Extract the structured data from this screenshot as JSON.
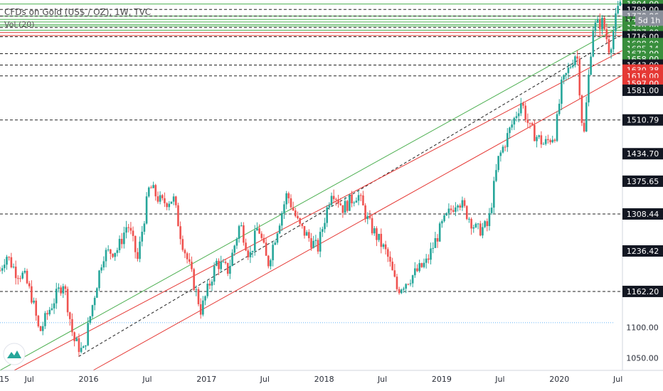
{
  "header": {
    "symbol_line": "CFDs on Gold (US$ / OZ), 1W, TVC",
    "volume_label": "Vol (20)"
  },
  "badges": {
    "countdown": "5d 1h",
    "partial_label": "17"
  },
  "colors": {
    "up": "#26a69a",
    "down": "#ef5350",
    "green_line": "#4caf50",
    "red_line": "#e53935",
    "dashed": "#222222",
    "dotted": "#64b5f6",
    "badge_dark": "#131722",
    "badge_red": "#e53935",
    "badge_green": "#388e3c",
    "badge_gray": "#8a8f9a"
  },
  "chart_data": {
    "type": "candlestick",
    "title": "CFDs on Gold (US$ / OZ), 1W, TVC",
    "x_axis": {
      "start": "2015-04-01",
      "end": "2020-07-15",
      "ticks": [
        {
          "label": "15",
          "date": "2015-04-01"
        },
        {
          "label": "Jul",
          "date": "2015-07-01"
        },
        {
          "label": "2016",
          "date": "2016-01-01"
        },
        {
          "label": "Jul",
          "date": "2016-07-01"
        },
        {
          "label": "2017",
          "date": "2017-01-01"
        },
        {
          "label": "Jul",
          "date": "2017-07-01"
        },
        {
          "label": "2018",
          "date": "2018-01-01"
        },
        {
          "label": "Jul",
          "date": "2018-07-01"
        },
        {
          "label": "2019",
          "date": "2019-01-01"
        },
        {
          "label": "Jul",
          "date": "2019-07-01"
        },
        {
          "label": "2020",
          "date": "2020-01-01"
        },
        {
          "label": "Jul",
          "date": "2020-07-01"
        }
      ]
    },
    "y_axis": {
      "scale": "log",
      "range": [
        1030,
        1815
      ],
      "ticks": [
        1100.0,
        1050.0
      ]
    },
    "price_levels": [
      {
        "label": "1804.00",
        "value": 1804.0,
        "style": "green",
        "badge": "green"
      },
      {
        "label": "1789.00",
        "value": 1789.0,
        "style": "dashed",
        "badge": "dark"
      },
      {
        "label": "1771.00",
        "value": 1771.0,
        "style": "green",
        "badge": "green"
      },
      {
        "label": "1770.86",
        "value": 1770.86,
        "style": "dashed",
        "badge": "gray"
      },
      {
        "label": "1755.00",
        "value": 1755.0,
        "style": "green",
        "badge": "green"
      },
      {
        "label": "1740.00",
        "value": 1740.0,
        "style": "dashed",
        "badge": "green"
      },
      {
        "label": "1727.00",
        "value": 1727.0,
        "style": "red",
        "badge": "green"
      },
      {
        "label": "1716.00",
        "value": 1716.0,
        "style": "dashed",
        "badge": "dark"
      },
      {
        "label": "1698.00",
        "value": 1698.0,
        "style": "none",
        "badge": "green"
      },
      {
        "label": "1685.14",
        "value": 1685.14,
        "style": "none",
        "badge": "green"
      },
      {
        "label": "1672.00",
        "value": 1672.0,
        "style": "dashed",
        "badge": "green"
      },
      {
        "label": "1658.00",
        "value": 1658.0,
        "style": "none",
        "badge": "green"
      },
      {
        "label": "1643.00",
        "value": 1643.0,
        "style": "dashed",
        "badge": "dark"
      },
      {
        "label": "1630.38",
        "value": 1630.38,
        "style": "none",
        "badge": "red"
      },
      {
        "label": "1616.00",
        "value": 1616.0,
        "style": "dashed",
        "badge": "red"
      },
      {
        "label": "1597.00",
        "value": 1597.0,
        "style": "none",
        "badge": "red"
      },
      {
        "label": "1581.00",
        "value": 1581.0,
        "style": "none",
        "badge": "dark"
      },
      {
        "label": "1510.79",
        "value": 1510.79,
        "style": "dashed",
        "badge": "dark"
      },
      {
        "label": "1434.70",
        "value": 1434.7,
        "style": "none",
        "badge": "dark"
      },
      {
        "label": "1375.65",
        "value": 1375.65,
        "style": "none",
        "badge": "dark"
      },
      {
        "label": "1308.44",
        "value": 1308.44,
        "style": "dashed",
        "badge": "dark"
      },
      {
        "label": "1236.42",
        "value": 1236.42,
        "style": "none",
        "badge": "dark"
      },
      {
        "label": "1162.20",
        "value": 1162.2,
        "style": "dashed",
        "badge": "dark"
      }
    ],
    "dotted_level": 1108,
    "trendlines": [
      {
        "color": "green",
        "style": "solid",
        "from": {
          "date": "2015-04-01",
          "value": 1030
        },
        "to": {
          "date": "2020-07-15",
          "value": 1746
        }
      },
      {
        "color": "dark",
        "style": "dashed",
        "from": {
          "date": "2015-12-01",
          "value": 1052
        },
        "to": {
          "date": "2020-07-01",
          "value": 1716
        }
      },
      {
        "color": "red",
        "style": "solid",
        "from": {
          "date": "2015-05-15",
          "value": 1030
        },
        "to": {
          "date": "2020-07-15",
          "value": 1680
        }
      },
      {
        "color": "red",
        "style": "solid",
        "from": {
          "date": "2016-01-15",
          "value": 1030
        },
        "to": {
          "date": "2020-07-15",
          "value": 1618
        }
      }
    ],
    "price_path": [
      {
        "date": "2015-04-01",
        "value": 1200
      },
      {
        "date": "2015-04-20",
        "value": 1230
      },
      {
        "date": "2015-05-20",
        "value": 1198
      },
      {
        "date": "2015-06-15",
        "value": 1190
      },
      {
        "date": "2015-07-10",
        "value": 1150
      },
      {
        "date": "2015-08-01",
        "value": 1090
      },
      {
        "date": "2015-09-01",
        "value": 1130
      },
      {
        "date": "2015-10-15",
        "value": 1180
      },
      {
        "date": "2015-11-15",
        "value": 1080
      },
      {
        "date": "2015-12-15",
        "value": 1058
      },
      {
        "date": "2016-02-15",
        "value": 1230
      },
      {
        "date": "2016-04-01",
        "value": 1240
      },
      {
        "date": "2016-05-01",
        "value": 1290
      },
      {
        "date": "2016-06-01",
        "value": 1220
      },
      {
        "date": "2016-07-08",
        "value": 1365
      },
      {
        "date": "2016-08-15",
        "value": 1330
      },
      {
        "date": "2016-09-20",
        "value": 1340
      },
      {
        "date": "2016-10-15",
        "value": 1260
      },
      {
        "date": "2016-12-15",
        "value": 1128
      },
      {
        "date": "2017-02-01",
        "value": 1215
      },
      {
        "date": "2017-03-10",
        "value": 1200
      },
      {
        "date": "2017-04-15",
        "value": 1290
      },
      {
        "date": "2017-05-15",
        "value": 1225
      },
      {
        "date": "2017-06-10",
        "value": 1285
      },
      {
        "date": "2017-07-10",
        "value": 1210
      },
      {
        "date": "2017-09-08",
        "value": 1350
      },
      {
        "date": "2017-10-15",
        "value": 1285
      },
      {
        "date": "2017-12-12",
        "value": 1240
      },
      {
        "date": "2018-01-25",
        "value": 1360
      },
      {
        "date": "2018-03-01",
        "value": 1320
      },
      {
        "date": "2018-04-15",
        "value": 1350
      },
      {
        "date": "2018-05-20",
        "value": 1290
      },
      {
        "date": "2018-07-15",
        "value": 1230
      },
      {
        "date": "2018-08-16",
        "value": 1165
      },
      {
        "date": "2018-10-01",
        "value": 1190
      },
      {
        "date": "2018-11-15",
        "value": 1215
      },
      {
        "date": "2019-01-01",
        "value": 1285
      },
      {
        "date": "2019-02-20",
        "value": 1340
      },
      {
        "date": "2019-04-20",
        "value": 1275
      },
      {
        "date": "2019-05-25",
        "value": 1285
      },
      {
        "date": "2019-06-25",
        "value": 1420
      },
      {
        "date": "2019-08-15",
        "value": 1515
      },
      {
        "date": "2019-09-05",
        "value": 1555
      },
      {
        "date": "2019-10-01",
        "value": 1490
      },
      {
        "date": "2019-11-15",
        "value": 1455
      },
      {
        "date": "2019-12-20",
        "value": 1480
      },
      {
        "date": "2020-01-08",
        "value": 1590
      },
      {
        "date": "2020-02-24",
        "value": 1680
      },
      {
        "date": "2020-03-16",
        "value": 1460
      },
      {
        "date": "2020-04-14",
        "value": 1740
      },
      {
        "date": "2020-05-15",
        "value": 1755
      },
      {
        "date": "2020-06-05",
        "value": 1680
      },
      {
        "date": "2020-06-26",
        "value": 1770
      },
      {
        "date": "2020-07-08",
        "value": 1810
      }
    ]
  }
}
